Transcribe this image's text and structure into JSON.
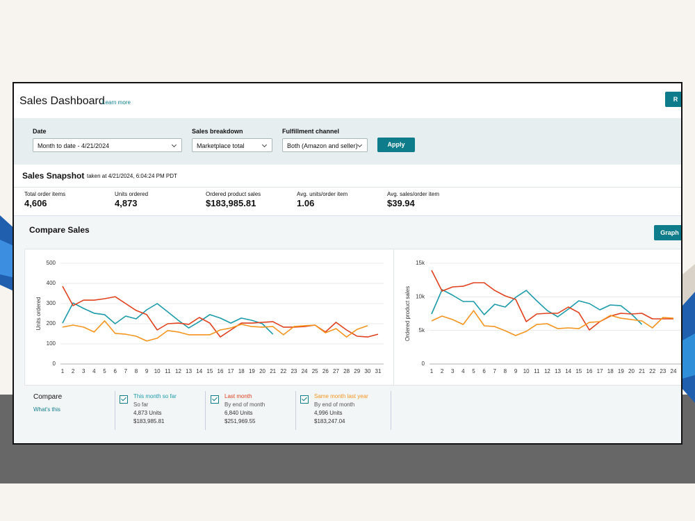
{
  "header": {
    "title": "Sales Dashboard",
    "learn_more": "Learn more",
    "button": "R"
  },
  "filters": [
    {
      "label": "Date",
      "value": "Month to date - 4/21/2024"
    },
    {
      "label": "Sales breakdown",
      "value": "Marketplace total"
    },
    {
      "label": "Fulfillment channel",
      "value": "Both (Amazon and seller)"
    }
  ],
  "apply": "Apply",
  "snapshot": {
    "title": "Sales Snapshot",
    "timestamp": "taken at 4/21/2024, 6:04:24 PM PDT",
    "metrics": [
      {
        "label": "Total order items",
        "value": "4,606"
      },
      {
        "label": "Units ordered",
        "value": "4,873"
      },
      {
        "label": "Ordered product sales",
        "value": "$183,985.81"
      },
      {
        "label": "Avg. units/order item",
        "value": "1.06"
      },
      {
        "label": "Avg. sales/order item",
        "value": "$39.94"
      }
    ]
  },
  "compare": {
    "title": "Compare Sales",
    "graph_button": "Graph",
    "label": "Compare",
    "whats_this": "What's this",
    "items": [
      {
        "subtitle": "So far",
        "units": "4,873 Units",
        "sales": "$183,985.81"
      },
      {
        "subtitle": "By end of month",
        "units": "6,840 Units",
        "sales": "$251,969.55"
      },
      {
        "subtitle": "By end of month",
        "units": "4,996 Units",
        "sales": "$183,247.04"
      }
    ]
  },
  "chart_data": [
    {
      "type": "line",
      "y_label": "Units ordered",
      "x": [
        1,
        2,
        3,
        4,
        5,
        6,
        7,
        8,
        9,
        10,
        11,
        12,
        13,
        14,
        15,
        16,
        17,
        18,
        19,
        20,
        21,
        22,
        23,
        24,
        25,
        26,
        27,
        28,
        29,
        30,
        31
      ],
      "xlim": [
        1,
        31
      ],
      "ylim": [
        0,
        500
      ],
      "yticks": [
        0,
        100,
        200,
        300,
        400,
        500
      ],
      "grid": true,
      "series": [
        {
          "name": "This month so far",
          "color": "#1b9aaa",
          "values": [
            203,
            303,
            276,
            252,
            245,
            200,
            238,
            224,
            269,
            300,
            259,
            217,
            179,
            210,
            245,
            228,
            203,
            228,
            217,
            200,
            148,
            null,
            null,
            null,
            null,
            null,
            null,
            null,
            null,
            null,
            null
          ]
        },
        {
          "name": "Last month",
          "color": "#e0401c",
          "values": [
            386,
            290,
            317,
            317,
            324,
            334,
            300,
            266,
            245,
            169,
            200,
            203,
            197,
            231,
            203,
            134,
            169,
            203,
            203,
            207,
            210,
            183,
            183,
            186,
            193,
            159,
            207,
            169,
            138,
            134,
            148
          ]
        },
        {
          "name": "Same month last year",
          "color": "#f5941d",
          "values": [
            183,
            193,
            183,
            159,
            214,
            152,
            148,
            138,
            114,
            128,
            166,
            159,
            145,
            145,
            145,
            169,
            179,
            197,
            186,
            183,
            186,
            145,
            186,
            190,
            193,
            155,
            176,
            134,
            172,
            190,
            null
          ]
        }
      ]
    },
    {
      "type": "line",
      "y_label": "Ordered product sales",
      "x": [
        1,
        2,
        3,
        4,
        5,
        6,
        7,
        8,
        9,
        10,
        11,
        12,
        13,
        14,
        15,
        16,
        17,
        18,
        19,
        20,
        21,
        22,
        23,
        24
      ],
      "xlim": [
        1,
        24
      ],
      "ylim": [
        0,
        15000
      ],
      "yticks": [
        0,
        {
          "value": 5000,
          "label": "5k"
        },
        {
          "value": 10000,
          "label": "10k"
        },
        {
          "value": 15000,
          "label": "15k"
        }
      ],
      "grid": true,
      "series": [
        {
          "color": "#1b9aaa",
          "values": [
            7450,
            11070,
            10240,
            9310,
            9310,
            7340,
            8900,
            8480,
            9930,
            10960,
            9410,
            7960,
            7030,
            8170,
            9410,
            9000,
            8070,
            8790,
            8690,
            7450,
            5890,
            null,
            null,
            null
          ]
        },
        {
          "color": "#e0401c",
          "values": [
            13960,
            10860,
            11480,
            11580,
            12100,
            12100,
            10960,
            10140,
            9620,
            6310,
            7450,
            7550,
            7550,
            8480,
            7650,
            5070,
            6310,
            7140,
            7550,
            7450,
            7550,
            6720,
            6720,
            6720
          ]
        },
        {
          "color": "#f5941d",
          "values": [
            6410,
            7140,
            6620,
            5890,
            7960,
            5690,
            5580,
            4960,
            4240,
            4860,
            5890,
            6000,
            5270,
            5380,
            5270,
            6200,
            6310,
            7240,
            6820,
            6620,
            6410,
            5380,
            6930,
            6820
          ]
        }
      ]
    }
  ]
}
